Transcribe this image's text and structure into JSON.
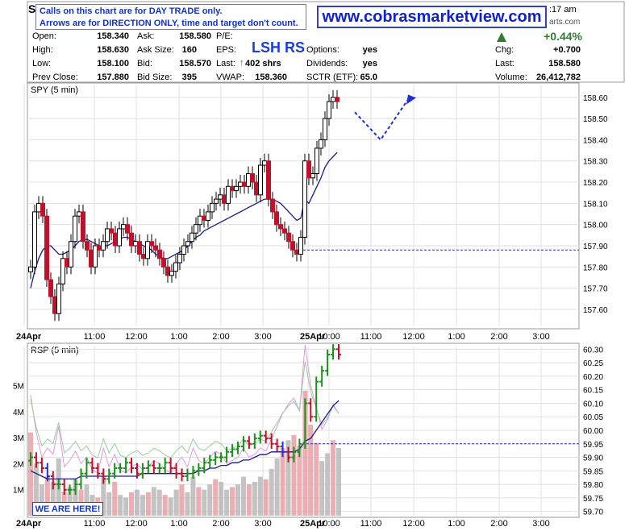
{
  "header": {
    "symbol_initial": "S",
    "time_fragment": ":17 am",
    "site_fragment": "arts.com",
    "callout_line1": "Calls on this chart are for DAY TRADE only.",
    "callout_line2": "Arrows are for DIRECTION ONLY, time and target don't count.",
    "url": "www.cobrasmarketview.com",
    "lsh_rs": "LSH RS",
    "pct_change": "+0.44%",
    "quote": {
      "open_label": "Open:",
      "open": "158.340",
      "high_label": "High:",
      "high": "158.630",
      "low_label": "Low:",
      "low": "158.100",
      "prevclose_label": "Prev Close:",
      "prevclose": "157.880",
      "ask_label": "Ask:",
      "ask": "158.580",
      "asksize_label": "Ask Size:",
      "asksize": "160",
      "bid_label": "Bid:",
      "bid": "158.570",
      "bidsize_label": "Bid Size:",
      "bidsize": "395",
      "pe_label": "P/E:",
      "eps_label": "EPS:",
      "last_label": "Last:",
      "last_trade": "402 shrs",
      "vwap_label": "VWAP:",
      "vwap": "158.360",
      "options_label": "Options:",
      "options": "yes",
      "dividends_label": "Dividends:",
      "dividends": "yes",
      "sctr_label": "SCTR (ETF):",
      "sctr": "65.0",
      "chg_label": "Chg:",
      "chg": "+0.700",
      "last2_label": "Last:",
      "last2": "158.580",
      "volume_label": "Volume:",
      "volume": "26,412,782"
    }
  },
  "annotation": {
    "here_label": "WE ARE HERE!"
  },
  "colors": {
    "up": "#1d8f1d",
    "down": "#c0102a",
    "mid": "#2233cc",
    "ma": "#1a1a8c",
    "grid": "#e0e0e0",
    "target": "#1f2fd6"
  },
  "chart_data": [
    {
      "type": "candlestick",
      "title": "SPY (5 min)",
      "ylim": [
        157.52,
        158.66
      ],
      "yticks": [
        157.6,
        157.7,
        157.8,
        157.9,
        158.0,
        158.1,
        158.2,
        158.3,
        158.4,
        158.5,
        158.6
      ],
      "xticks": [
        "24Apr",
        "11:00",
        "12:00",
        "1:00",
        "2:00",
        "3:00",
        "25Apr",
        "10:00",
        "11:00",
        "12:00",
        "1:00",
        "2:00",
        "3:00"
      ],
      "close_series": [
        157.8,
        158.06,
        158.1,
        158.04,
        157.74,
        157.66,
        157.58,
        157.72,
        157.84,
        157.8,
        157.92,
        158.04,
        158.06,
        157.92,
        157.88,
        157.8,
        157.9,
        157.88,
        157.92,
        157.98,
        157.96,
        157.9,
        157.98,
        158.0,
        157.96,
        157.9,
        157.92,
        157.86,
        157.84,
        157.92,
        157.9,
        157.88,
        157.84,
        157.8,
        157.76,
        157.78,
        157.82,
        157.86,
        157.9,
        157.92,
        157.96,
        158.0,
        158.04,
        158.02,
        158.06,
        158.1,
        158.12,
        158.14,
        158.1,
        158.18,
        158.16,
        158.18,
        158.2,
        158.18,
        158.24,
        158.2,
        158.14,
        158.28,
        158.3,
        158.12,
        158.06,
        158.0,
        157.98,
        157.96,
        157.92,
        157.88,
        157.86,
        157.94,
        158.3,
        158.22,
        158.24,
        158.36,
        158.4,
        158.5,
        158.58,
        158.6,
        158.58
      ],
      "ma_series": [
        157.7,
        157.78,
        157.84,
        157.88,
        157.9,
        157.9,
        157.88,
        157.86,
        157.86,
        157.87,
        157.88,
        157.9,
        157.92,
        157.93,
        157.93,
        157.92,
        157.91,
        157.9,
        157.9,
        157.9,
        157.91,
        157.92,
        157.93,
        157.94,
        157.94,
        157.93,
        157.92,
        157.91,
        157.9,
        157.89,
        157.88,
        157.86,
        157.85,
        157.84,
        157.84,
        157.85,
        157.86,
        157.87,
        157.88,
        157.9,
        157.92,
        157.94,
        157.95,
        157.97,
        157.98,
        157.99,
        158.0,
        158.01,
        158.02,
        158.03,
        158.04,
        158.05,
        158.06,
        158.07,
        158.08,
        158.09,
        158.1,
        158.11,
        158.12,
        158.12,
        158.12,
        158.11,
        158.1,
        158.08,
        158.06,
        158.04,
        158.02,
        158.03,
        158.12,
        158.1,
        158.14,
        158.18,
        158.22,
        158.27,
        158.3,
        158.32,
        158.34
      ],
      "prev_close_line": 157.88,
      "projection_arrow": {
        "start": 158.53,
        "low": 158.4,
        "end": 158.59
      }
    },
    {
      "type": "bar-overlay",
      "title": "RSP (5 min)",
      "ylim": [
        59.69,
        60.31
      ],
      "yticks": [
        59.7,
        59.75,
        59.8,
        59.85,
        59.9,
        59.95,
        60.0,
        60.05,
        60.1,
        60.15,
        60.2,
        60.25,
        60.3
      ],
      "volume_ticks": [
        "1M",
        "2M",
        "3M",
        "4M",
        "5M"
      ],
      "xticks": [
        "24Apr",
        "11:00",
        "12:00",
        "1:00",
        "2:00",
        "3:00",
        "25Apr",
        "10:00",
        "11:00",
        "12:00",
        "1:00",
        "2:00",
        "3:00"
      ],
      "close_series": [
        59.9,
        59.88,
        59.86,
        59.83,
        59.8,
        59.8,
        59.78,
        59.78,
        59.8,
        59.84,
        59.88,
        59.86,
        59.84,
        59.82,
        59.84,
        59.86,
        59.86,
        59.88,
        59.86,
        59.84,
        59.86,
        59.87,
        59.86,
        59.86,
        59.88,
        59.86,
        59.84,
        59.83,
        59.84,
        59.85,
        59.86,
        59.88,
        59.89,
        59.9,
        59.9,
        59.92,
        59.93,
        59.94,
        59.96,
        59.95,
        59.97,
        59.98,
        59.97,
        59.95,
        59.94,
        59.92,
        59.9,
        59.92,
        59.95,
        60.1,
        60.05,
        60.18,
        60.22,
        60.28,
        60.3,
        60.28
      ],
      "ma_series": [
        59.85,
        59.84,
        59.83,
        59.82,
        59.82,
        59.82,
        59.82,
        59.82,
        59.82,
        59.83,
        59.83,
        59.83,
        59.83,
        59.83,
        59.83,
        59.83,
        59.83,
        59.83,
        59.83,
        59.83,
        59.84,
        59.84,
        59.84,
        59.84,
        59.84,
        59.84,
        59.84,
        59.84,
        59.84,
        59.84,
        59.85,
        59.85,
        59.86,
        59.86,
        59.87,
        59.87,
        59.88,
        59.88,
        59.89,
        59.89,
        59.9,
        59.91,
        59.91,
        59.92,
        59.92,
        59.92,
        59.92,
        59.92,
        59.93,
        59.96,
        59.97,
        60.0,
        60.03,
        60.06,
        60.09,
        60.11
      ],
      "volume_series_m": [
        3.2,
        2.0,
        1.2,
        1.5,
        1.3,
        2.2,
        0.9,
        1.1,
        1.4,
        1.0,
        1.2,
        0.8,
        0.7,
        1.5,
        0.9,
        1.3,
        0.8,
        0.7,
        0.9,
        1.0,
        0.8,
        0.9,
        1.1,
        1.0,
        0.8,
        0.7,
        1.0,
        1.2,
        0.9,
        1.5,
        1.1,
        1.0,
        1.2,
        1.4,
        1.3,
        1.0,
        1.1,
        1.2,
        1.5,
        1.2,
        1.3,
        1.5,
        1.4,
        1.8,
        2.2,
        2.6,
        2.9,
        3.1,
        2.7,
        4.8,
        3.5,
        2.8,
        2.1,
        2.4,
        2.9,
        2.6
      ],
      "prev_close_line": 59.95
    }
  ]
}
